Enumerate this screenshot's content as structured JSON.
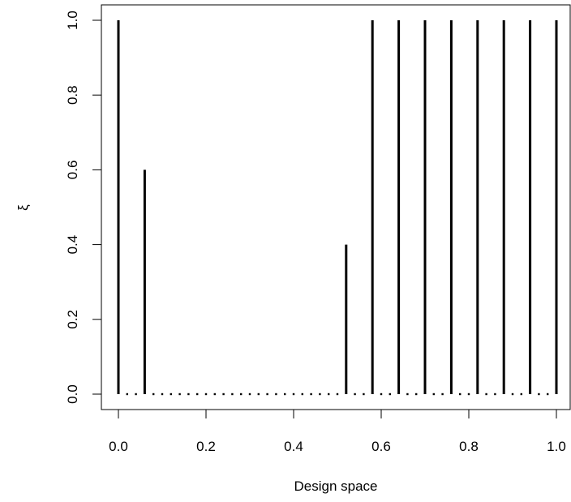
{
  "chart_data": {
    "type": "bar",
    "xlabel": "Design space",
    "ylabel": "ξ",
    "xlim": [
      -0.04,
      1.04
    ],
    "ylim": [
      -0.04,
      1.04
    ],
    "x_ticks": [
      "0.0",
      "0.2",
      "0.4",
      "0.6",
      "0.8",
      "1.0"
    ],
    "y_ticks": [
      "0.0",
      "0.2",
      "0.4",
      "0.6",
      "0.8",
      "1.0"
    ],
    "grid": false,
    "series": [
      {
        "values": [
          {
            "x": 0.0,
            "y": 1.0
          },
          {
            "x": 0.06,
            "y": 0.6
          },
          {
            "x": 0.52,
            "y": 0.4
          },
          {
            "x": 0.58,
            "y": 1.0
          },
          {
            "x": 0.64,
            "y": 1.0
          },
          {
            "x": 0.7,
            "y": 1.0
          },
          {
            "x": 0.76,
            "y": 1.0
          },
          {
            "x": 0.82,
            "y": 1.0
          },
          {
            "x": 0.88,
            "y": 1.0
          },
          {
            "x": 0.94,
            "y": 1.0
          },
          {
            "x": 1.0,
            "y": 1.0
          }
        ]
      }
    ],
    "dotted_baseline": {
      "y": 0.0,
      "x": [
        0.0,
        0.02,
        0.04,
        0.06,
        0.08,
        0.1,
        0.12,
        0.14,
        0.16,
        0.18,
        0.2,
        0.22,
        0.24,
        0.26,
        0.28,
        0.3,
        0.32,
        0.34,
        0.36,
        0.38,
        0.4,
        0.42,
        0.44,
        0.46,
        0.48,
        0.5,
        0.52,
        0.54,
        0.56,
        0.58,
        0.6,
        0.62,
        0.64,
        0.66,
        0.68,
        0.7,
        0.72,
        0.74,
        0.76,
        0.78,
        0.8,
        0.82,
        0.84,
        0.86,
        0.88,
        0.9,
        0.92,
        0.94,
        0.96,
        0.98,
        1.0
      ]
    },
    "colors": {
      "line": "#000000",
      "background": "#ffffff"
    }
  }
}
